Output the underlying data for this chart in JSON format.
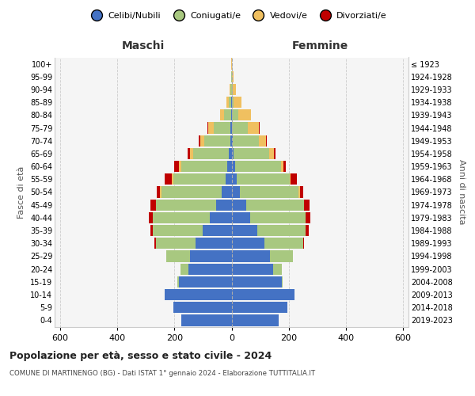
{
  "age_groups": [
    "0-4",
    "5-9",
    "10-14",
    "15-19",
    "20-24",
    "25-29",
    "30-34",
    "35-39",
    "40-44",
    "45-49",
    "50-54",
    "55-59",
    "60-64",
    "65-69",
    "70-74",
    "75-79",
    "80-84",
    "85-89",
    "90-94",
    "95-99",
    "100+"
  ],
  "birth_years": [
    "2019-2023",
    "2014-2018",
    "2009-2013",
    "2004-2008",
    "1999-2003",
    "1994-1998",
    "1989-1993",
    "1984-1988",
    "1979-1983",
    "1974-1978",
    "1969-1973",
    "1964-1968",
    "1959-1963",
    "1954-1958",
    "1949-1953",
    "1944-1948",
    "1939-1943",
    "1934-1938",
    "1929-1933",
    "1924-1928",
    "≤ 1923"
  ],
  "males": {
    "celibi": [
      175,
      205,
      235,
      185,
      150,
      145,
      125,
      100,
      75,
      55,
      35,
      20,
      15,
      10,
      5,
      3,
      2,
      1,
      0,
      0,
      0
    ],
    "coniugati": [
      0,
      0,
      0,
      5,
      30,
      85,
      140,
      175,
      200,
      210,
      210,
      185,
      160,
      125,
      90,
      60,
      25,
      10,
      3,
      1,
      0
    ],
    "vedovi": [
      0,
      0,
      0,
      0,
      0,
      0,
      0,
      0,
      0,
      0,
      5,
      5,
      10,
      10,
      15,
      18,
      12,
      7,
      3,
      1,
      1
    ],
    "divorziati": [
      0,
      0,
      0,
      0,
      0,
      0,
      5,
      8,
      15,
      20,
      12,
      25,
      15,
      8,
      5,
      3,
      1,
      0,
      0,
      0,
      0
    ]
  },
  "females": {
    "nubili": [
      165,
      195,
      220,
      175,
      145,
      135,
      115,
      90,
      65,
      50,
      30,
      18,
      12,
      8,
      5,
      2,
      1,
      0,
      0,
      0,
      0
    ],
    "coniugate": [
      0,
      0,
      0,
      5,
      30,
      80,
      135,
      170,
      195,
      205,
      205,
      185,
      160,
      125,
      90,
      55,
      22,
      8,
      3,
      1,
      0
    ],
    "vedove": [
      0,
      0,
      0,
      0,
      0,
      0,
      0,
      0,
      0,
      0,
      5,
      5,
      10,
      15,
      25,
      40,
      45,
      28,
      12,
      5,
      2
    ],
    "divorziate": [
      0,
      0,
      0,
      0,
      0,
      0,
      5,
      10,
      15,
      18,
      10,
      20,
      8,
      5,
      3,
      2,
      1,
      0,
      0,
      0,
      0
    ]
  },
  "colors": {
    "celibi_nubili": "#4472C4",
    "coniugati": "#A8C880",
    "vedovi": "#F0C060",
    "divorziati": "#C00000"
  },
  "title": "Popolazione per età, sesso e stato civile - 2024",
  "subtitle": "COMUNE DI MARTINENGO (BG) - Dati ISTAT 1° gennaio 2024 - Elaborazione TUTTITALIA.IT",
  "label_maschi": "Maschi",
  "label_femmine": "Femmine",
  "ylabel_left": "Fasce di età",
  "ylabel_right": "Anni di nascita",
  "xlim": 620,
  "background_color": "#f5f5f5",
  "legend_colors": {
    "celibi_nubili": "#4472C4",
    "coniugati": "#A8C880",
    "vedovi": "#F0C060",
    "divorziati": "#C00000"
  }
}
